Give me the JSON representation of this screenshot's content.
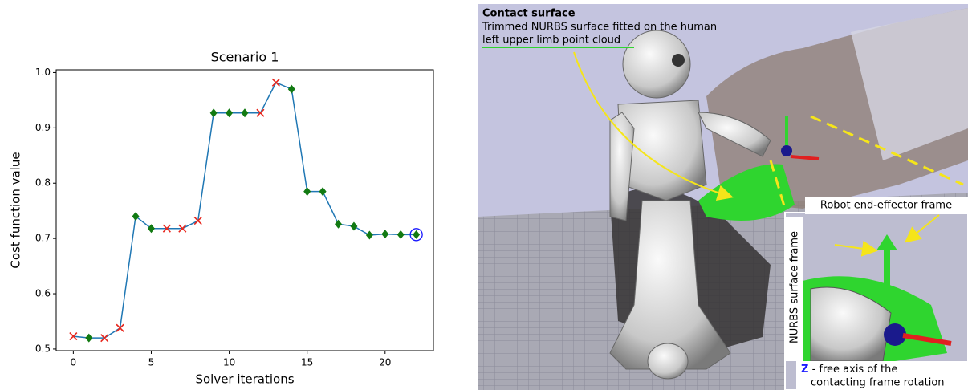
{
  "chart_data": {
    "type": "line",
    "title": "Scenario 1",
    "x_label": "Solver iterations",
    "y_label": "Cost function value",
    "x": [
      0,
      1,
      2,
      3,
      4,
      5,
      6,
      7,
      8,
      9,
      10,
      11,
      12,
      13,
      14,
      15,
      16,
      17,
      18,
      19,
      20,
      21,
      22
    ],
    "values": [
      0.523,
      0.52,
      0.52,
      0.538,
      0.74,
      0.718,
      0.718,
      0.718,
      0.732,
      0.927,
      0.927,
      0.927,
      0.927,
      0.982,
      0.97,
      0.785,
      0.785,
      0.726,
      0.722,
      0.706,
      0.708,
      0.707,
      0.707
    ],
    "marker_kinds": [
      "x",
      "diamond",
      "x",
      "x",
      "diamond",
      "diamond",
      "x",
      "x",
      "x",
      "diamond",
      "diamond",
      "diamond",
      "x",
      "x",
      "diamond",
      "diamond",
      "diamond",
      "diamond",
      "diamond",
      "diamond",
      "diamond",
      "diamond",
      "diamond-circled"
    ],
    "color": "#1f77b4",
    "x_marker_color": "#e8261c",
    "diamond_marker_color": "#127a12",
    "circle_color": "#1a1aff",
    "xlim": [
      -1.1,
      23.1
    ],
    "ylim": [
      0.497,
      1.005
    ],
    "xticks": [
      0,
      5,
      10,
      15,
      20
    ],
    "yticks": [
      0.5,
      0.6,
      0.7,
      0.8,
      0.9,
      {
        "value": 1,
        "label": "1.0"
      }
    ]
  },
  "render_panel": {
    "title": "Contact surface",
    "description": [
      "Trimmed NURBS surface fitted on the human",
      "left upper limb point cloud"
    ],
    "end_effector_label": "Robot end-effector frame",
    "surface_frame_label": "NURBS surface frame",
    "axis_letter": "Z",
    "axis_note": [
      " - free axis of the",
      "contacting frame rotation"
    ]
  }
}
